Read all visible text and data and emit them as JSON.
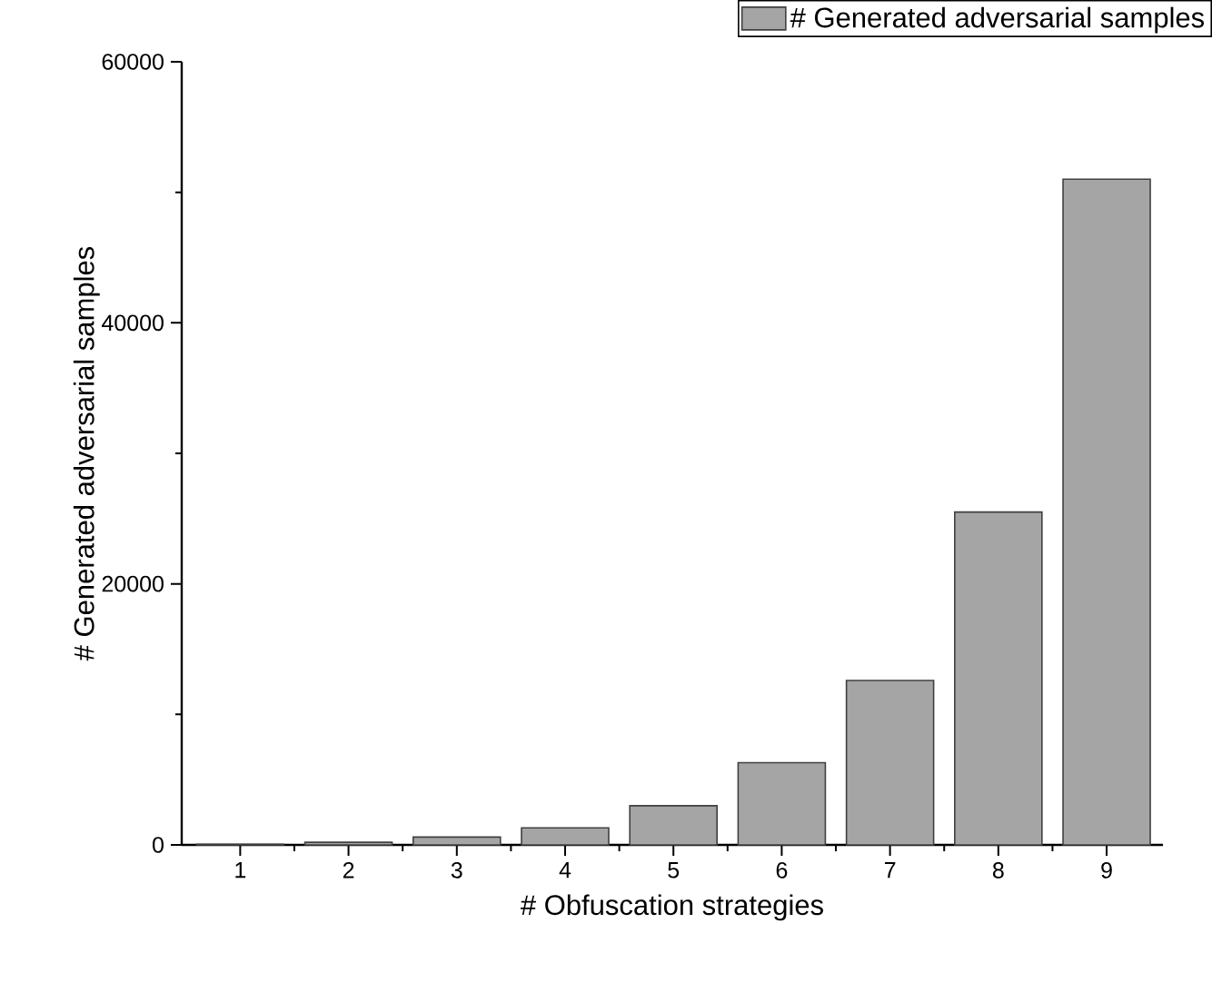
{
  "chart_data": {
    "type": "bar",
    "categories": [
      "1",
      "2",
      "3",
      "4",
      "5",
      "6",
      "7",
      "8",
      "9"
    ],
    "series": [
      {
        "name": "# Generated adversarial samples",
        "color": "#a5a5a5",
        "values": [
          50,
          200,
          600,
          1300,
          3000,
          6300,
          12600,
          25500,
          51000
        ]
      }
    ],
    "xlabel": "# Obfuscation strategies",
    "ylabel": "# Generated adversarial samples",
    "ylim": [
      0,
      60000
    ],
    "yticks": [
      0,
      20000,
      40000,
      60000
    ],
    "legend": "top right"
  }
}
